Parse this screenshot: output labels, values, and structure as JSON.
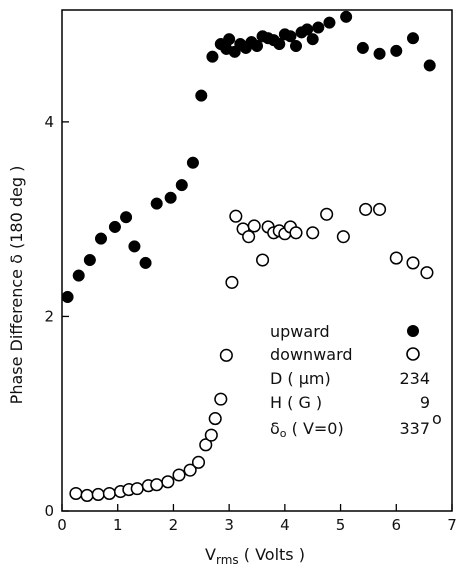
{
  "chart_data": {
    "type": "scatter",
    "xlabel": "Vrms (Volts)",
    "xlabel_main": "V",
    "xlabel_sub": "rms",
    "xlabel_rest": " ( Volts )",
    "ylabel": "Phase Difference δ (180 deg )",
    "xlim": [
      0,
      7
    ],
    "ylim": [
      0,
      5.15
    ],
    "xticks": [
      0,
      1,
      2,
      3,
      4,
      5,
      6,
      7
    ],
    "yticks": [
      0,
      2,
      4
    ],
    "grid": false,
    "legend_position": "lower-right",
    "series": [
      {
        "name": "upward",
        "marker": "filled-circle",
        "color": "#000000",
        "x": [
          0.1,
          0.3,
          0.5,
          0.7,
          0.95,
          1.15,
          1.3,
          1.5,
          1.7,
          1.95,
          2.15,
          2.35,
          2.5,
          2.7,
          2.85,
          2.95,
          3.0,
          3.1,
          3.2,
          3.3,
          3.4,
          3.5,
          3.6,
          3.7,
          3.8,
          3.9,
          4.0,
          4.1,
          4.2,
          4.3,
          4.4,
          4.5,
          4.6,
          4.8,
          5.1,
          5.4,
          5.7,
          6.0,
          6.3,
          6.6
        ],
        "y": [
          2.2,
          2.42,
          2.58,
          2.8,
          2.92,
          3.02,
          2.72,
          2.55,
          3.16,
          3.22,
          3.35,
          3.58,
          4.27,
          4.67,
          4.8,
          4.75,
          4.85,
          4.72,
          4.8,
          4.76,
          4.82,
          4.78,
          4.88,
          4.86,
          4.84,
          4.8,
          4.9,
          4.88,
          4.78,
          4.92,
          4.95,
          4.85,
          4.97,
          5.02,
          5.08,
          4.76,
          4.7,
          4.73,
          4.86,
          4.58
        ]
      },
      {
        "name": "downward",
        "marker": "open-circle",
        "color": "#000000",
        "x": [
          0.25,
          0.45,
          0.65,
          0.85,
          1.05,
          1.2,
          1.35,
          1.55,
          1.7,
          1.9,
          2.1,
          2.3,
          2.45,
          2.58,
          2.68,
          2.75,
          2.85,
          2.95,
          3.05,
          3.12,
          3.25,
          3.35,
          3.45,
          3.6,
          3.7,
          3.8,
          3.9,
          4.0,
          4.1,
          4.2,
          4.5,
          4.75,
          5.05,
          5.45,
          5.7,
          6.0,
          6.3,
          6.55
        ],
        "y": [
          0.18,
          0.16,
          0.17,
          0.18,
          0.2,
          0.22,
          0.23,
          0.26,
          0.27,
          0.3,
          0.37,
          0.42,
          0.5,
          0.68,
          0.78,
          0.95,
          1.15,
          1.6,
          2.35,
          3.03,
          2.9,
          2.82,
          2.93,
          2.58,
          2.92,
          2.86,
          2.88,
          2.85,
          2.92,
          2.86,
          2.86,
          3.05,
          2.82,
          3.1,
          3.1,
          2.6,
          2.55,
          2.45
        ]
      }
    ],
    "legend": [
      {
        "label": "upward",
        "marker": "filled-circle"
      },
      {
        "label": "downward",
        "marker": "open-circle"
      }
    ],
    "parameters": [
      {
        "label": "D ( μm)",
        "value": "234"
      },
      {
        "label": "H ( G )",
        "value": "9"
      },
      {
        "label": "δ",
        "label_sub": "o",
        "label_rest": " ( V=0)",
        "value": "337",
        "value_sup": "o"
      }
    ]
  }
}
